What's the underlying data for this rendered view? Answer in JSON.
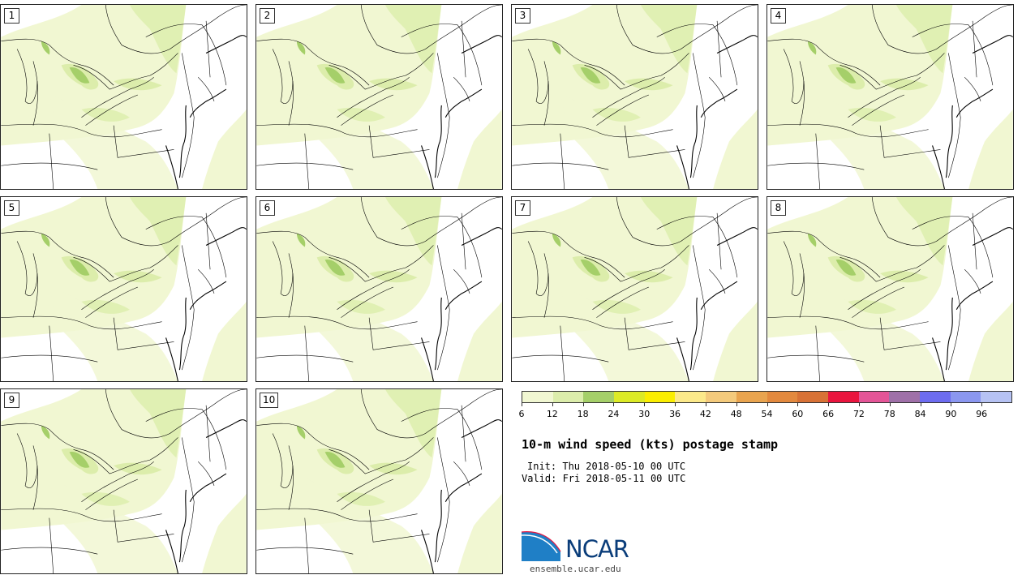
{
  "panels": [
    {
      "id": "1",
      "label": "1"
    },
    {
      "id": "2",
      "label": "2"
    },
    {
      "id": "3",
      "label": "3"
    },
    {
      "id": "4",
      "label": "4"
    },
    {
      "id": "5",
      "label": "5"
    },
    {
      "id": "6",
      "label": "6"
    },
    {
      "id": "7",
      "label": "7"
    },
    {
      "id": "8",
      "label": "8"
    },
    {
      "id": "9",
      "label": "9"
    },
    {
      "id": "10",
      "label": "10"
    }
  ],
  "colorbar": {
    "colors": [
      "#f1f7d2",
      "#dcedab",
      "#a5cf69",
      "#dcea26",
      "#fbee00",
      "#fce98a",
      "#f4ca7c",
      "#e9a44f",
      "#e3893e",
      "#d87236",
      "#e9153e",
      "#e45597",
      "#9f70a8",
      "#6d6cf0",
      "#8b97f0",
      "#b6c2f3"
    ],
    "tick_labels": [
      "6",
      "12",
      "18",
      "24",
      "30",
      "36",
      "42",
      "48",
      "54",
      "60",
      "66",
      "72",
      "78",
      "84",
      "90",
      "96"
    ]
  },
  "title": "10-m wind speed (kts) postage stamp",
  "init": "Init: Thu 2018-05-10 00 UTC",
  "valid": "Valid: Fri 2018-05-11 00 UTC",
  "logo_text": "NCAR",
  "site": "ensemble.ucar.edu"
}
